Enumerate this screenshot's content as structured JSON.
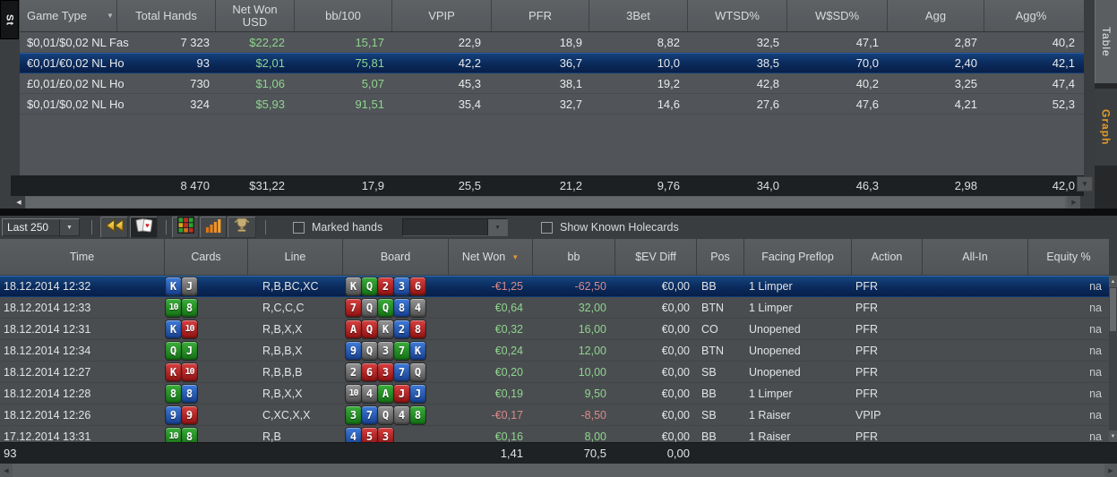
{
  "colors": {
    "accent_orange": "#e29b28",
    "positive_green": "#8fd48f",
    "negative_red": "#d88a8a",
    "selection_blue": "#0b2a5a"
  },
  "icons": {
    "replay-icon": "««",
    "cards-icon": "♥",
    "grid-icon": "grid",
    "bar-chart-icon": "bars",
    "trophy-icon": "trophy",
    "sort-desc-icon": "▼",
    "filter-icon": "▼",
    "chevron-down-icon": "▼",
    "scroll-left-icon": "◀",
    "scroll-right-icon": "▶",
    "scroll-up-icon": "▲",
    "scroll-down-icon": "▼"
  },
  "left_tab": {
    "label": "St"
  },
  "side_tabs": [
    {
      "label": "Table",
      "active": true
    },
    {
      "label": "Graph",
      "active": false
    }
  ],
  "stats_table": {
    "columns": [
      "Game Type",
      "Total Hands",
      "Net Won USD",
      "bb/100",
      "VPIP",
      "PFR",
      "3Bet",
      "WTSD%",
      "W$SD%",
      "Agg",
      "Agg%"
    ],
    "rows": [
      {
        "game_type": "$0,01/$0,02 NL Fas",
        "total_hands": "7 323",
        "net_won": "$22,22",
        "bb100": "15,17",
        "vpip": "22,9",
        "pfr": "18,9",
        "threebet": "8,82",
        "wtsd": "32,5",
        "wssd": "47,1",
        "agg": "2,87",
        "aggpct": "40,2",
        "selected": false
      },
      {
        "game_type": "€0,01/€0,02 NL Ho",
        "total_hands": "93",
        "net_won": "$2,01",
        "bb100": "75,81",
        "vpip": "42,2",
        "pfr": "36,7",
        "threebet": "10,0",
        "wtsd": "38,5",
        "wssd": "70,0",
        "agg": "2,40",
        "aggpct": "42,1",
        "selected": true
      },
      {
        "game_type": "£0,01/£0,02 NL Ho",
        "total_hands": "730",
        "net_won": "$1,06",
        "bb100": "5,07",
        "vpip": "45,3",
        "pfr": "38,1",
        "threebet": "19,2",
        "wtsd": "42,8",
        "wssd": "40,2",
        "agg": "3,25",
        "aggpct": "47,4",
        "selected": false
      },
      {
        "game_type": "$0,01/$0,02 NL Ho",
        "total_hands": "324",
        "net_won": "$5,93",
        "bb100": "91,51",
        "vpip": "35,4",
        "pfr": "32,7",
        "threebet": "14,6",
        "wtsd": "27,6",
        "wssd": "47,6",
        "agg": "4,21",
        "aggpct": "52,3",
        "selected": false
      }
    ],
    "totals": {
      "game_type": "",
      "total_hands": "8 470",
      "net_won": "$31,22",
      "bb100": "17,9",
      "vpip": "25,5",
      "pfr": "21,2",
      "threebet": "9,76",
      "wtsd": "34,0",
      "wssd": "46,3",
      "agg": "2,98",
      "aggpct": "42,0"
    }
  },
  "toolbar": {
    "range_select": {
      "value": "Last 250"
    },
    "icon_buttons": [
      "replay-icon",
      "cards-icon",
      "grid-icon",
      "bar-chart-icon",
      "trophy-icon"
    ],
    "marked_hands_label": "Marked hands",
    "marked_hands_checked": false,
    "marked_filter_value": "",
    "show_holecards_label": "Show Known Holecards",
    "show_holecards_checked": false
  },
  "hands_table": {
    "columns": [
      "Time",
      "Cards",
      "Line",
      "Board",
      "Net Won",
      "bb",
      "$EV Diff",
      "Pos",
      "Facing Preflop",
      "Action",
      "All-In",
      "Equity %"
    ],
    "sort_column": "Net Won",
    "sort_direction": "desc",
    "rows": [
      {
        "time": "18.12.2014 12:32",
        "cards": [
          "Kd",
          "Js"
        ],
        "line": "R,B,BC,XC",
        "board": [
          "Ks",
          "Qc",
          "2h",
          "3d",
          "6h"
        ],
        "net_won": "-€1,25",
        "bb": "-62,50",
        "ev_diff": "€0,00",
        "pos": "BB",
        "facing": "1 Limper",
        "action": "PFR",
        "all_in": "",
        "equity": "na",
        "selected": true
      },
      {
        "time": "18.12.2014 12:33",
        "cards": [
          "10c",
          "8c"
        ],
        "line": "R,C,C,C",
        "board": [
          "7h",
          "Qs",
          "Qc",
          "8d",
          "4s"
        ],
        "net_won": "€0,64",
        "bb": "32,00",
        "ev_diff": "€0,00",
        "pos": "BTN",
        "facing": "1 Limper",
        "action": "PFR",
        "all_in": "",
        "equity": "na",
        "selected": false
      },
      {
        "time": "18.12.2014 12:31",
        "cards": [
          "Kd",
          "10h"
        ],
        "line": "R,B,X,X",
        "board": [
          "Ah",
          "Qh",
          "Ks",
          "2d",
          "8h"
        ],
        "net_won": "€0,32",
        "bb": "16,00",
        "ev_diff": "€0,00",
        "pos": "CO",
        "facing": "Unopened",
        "action": "PFR",
        "all_in": "",
        "equity": "na",
        "selected": false
      },
      {
        "time": "18.12.2014 12:34",
        "cards": [
          "Qc",
          "Jc"
        ],
        "line": "R,B,B,X",
        "board": [
          "9d",
          "Qs",
          "3s",
          "7c",
          "Kd"
        ],
        "net_won": "€0,24",
        "bb": "12,00",
        "ev_diff": "€0,00",
        "pos": "BTN",
        "facing": "Unopened",
        "action": "PFR",
        "all_in": "",
        "equity": "na",
        "selected": false
      },
      {
        "time": "18.12.2014 12:27",
        "cards": [
          "Kh",
          "10h"
        ],
        "line": "R,B,B,B",
        "board": [
          "2s",
          "6h",
          "3h",
          "7d",
          "Qs"
        ],
        "net_won": "€0,20",
        "bb": "10,00",
        "ev_diff": "€0,00",
        "pos": "SB",
        "facing": "Unopened",
        "action": "PFR",
        "all_in": "",
        "equity": "na",
        "selected": false
      },
      {
        "time": "18.12.2014 12:28",
        "cards": [
          "8c",
          "8d"
        ],
        "line": "R,B,X,X",
        "board": [
          "10s",
          "4s",
          "Ac",
          "Jh",
          "Jd"
        ],
        "net_won": "€0,19",
        "bb": "9,50",
        "ev_diff": "€0,00",
        "pos": "BB",
        "facing": "1 Limper",
        "action": "PFR",
        "all_in": "",
        "equity": "na",
        "selected": false
      },
      {
        "time": "18.12.2014 12:26",
        "cards": [
          "9d",
          "9h"
        ],
        "line": "C,XC,X,X",
        "board": [
          "3c",
          "7d",
          "Qs",
          "4s",
          "8c"
        ],
        "net_won": "-€0,17",
        "bb": "-8,50",
        "ev_diff": "€0,00",
        "pos": "SB",
        "facing": "1 Raiser",
        "action": "VPIP",
        "all_in": "",
        "equity": "na",
        "selected": false
      },
      {
        "time": "17.12.2014 13:31",
        "cards": [
          "10c",
          "8c"
        ],
        "line": "R,B",
        "board": [
          "4d",
          "5h",
          "3h"
        ],
        "net_won": "€0,16",
        "bb": "8,00",
        "ev_diff": "€0,00",
        "pos": "BB",
        "facing": "1 Raiser",
        "action": "PFR",
        "all_in": "",
        "equity": "na",
        "selected": false
      }
    ],
    "summary": {
      "count": "93",
      "net_won": "1,41",
      "bb": "70,5",
      "ev_diff": "0,00"
    }
  }
}
